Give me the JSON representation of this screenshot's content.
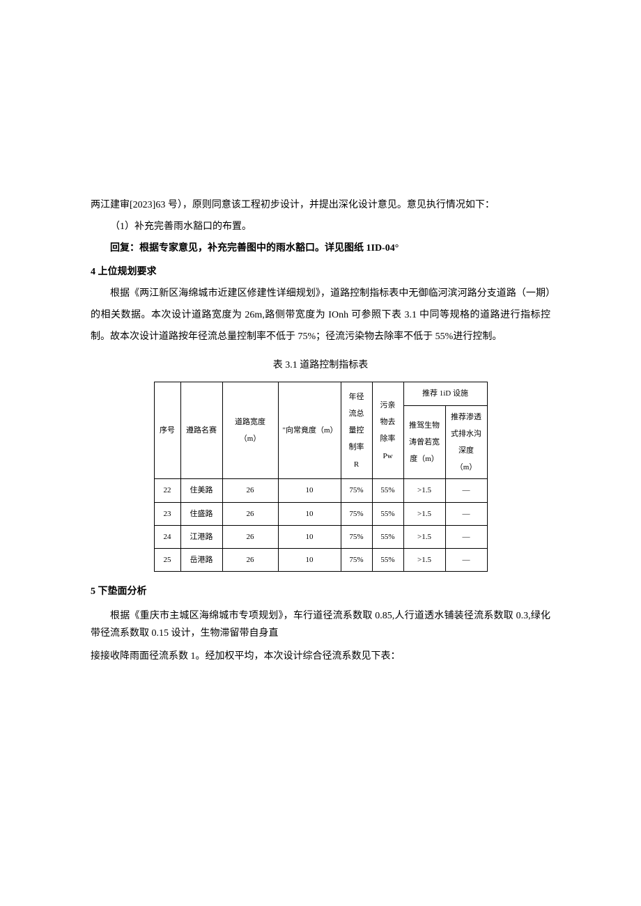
{
  "intro": "两江建审[2023]63 号），原则同意该工程初步设计，并提出深化设计意见。意见执行情况如下：",
  "item1": "（1）补充完善雨水豁口的布置。",
  "reply": "回复：根据专家意见，补充完善图中的雨水豁口。详见图纸 1ID-04°",
  "section4": {
    "heading": "4 上位规划要求",
    "body": "根据《两江新区海绵城市近建区修建性详细规划》，道路控制指标表中无御临河滨河路分支道路（一期）的相关数据。本次设计道路宽度为 26m,路侧带宽度为 IOnh 可参照下表 3.1 中同等规格的道路进行指标控制。故本次设计道路按年径流总量控制率不低于 75%；径流污染物去除率不低于 55%进行控制。"
  },
  "table": {
    "caption": "表 3.1 道路控制指标表",
    "headers": {
      "seq": "序号",
      "name": "遵路名赛",
      "width": "道路宽度（m）",
      "side": "\"向常竟度（m）",
      "r": "年径流总量控制率 R",
      "pw": "污亲物去除率 Pw",
      "lid_group": "推荐 1iD 设施",
      "lid1": "推驾生物涛曾若宽度（m）",
      "lid2": "推荐渗透式排水沟深度（m）"
    },
    "rows": [
      {
        "seq": "22",
        "name": "住美路",
        "width": "26",
        "side": "10",
        "r": "75%",
        "pw": "55%",
        "lid1": ">1.5",
        "lid2": "—"
      },
      {
        "seq": "23",
        "name": "住盛路",
        "width": "26",
        "side": "10",
        "r": "75%",
        "pw": "55%",
        "lid1": ">1.5",
        "lid2": "—"
      },
      {
        "seq": "24",
        "name": "江港路",
        "width": "26",
        "side": "10",
        "r": "75%",
        "pw": "55%",
        "lid1": ">1.5",
        "lid2": "—"
      },
      {
        "seq": "25",
        "name": "岳港路",
        "width": "26",
        "side": "10",
        "r": "75%",
        "pw": "55%",
        "lid1": ">1.5",
        "lid2": "—"
      }
    ]
  },
  "section5": {
    "heading": "5 下垫面分析",
    "p1": "根据《重庆市主城区海绵城市专项规划》，车行道径流系数取 0.85,人行道透水铺装径流系数取 0.3,绿化带径流系数取 0.15 设计，生物滞留带自身直",
    "p2": "接接收降雨面径流系数 1。经加权平均，本次设计综合径流系数见下表："
  }
}
